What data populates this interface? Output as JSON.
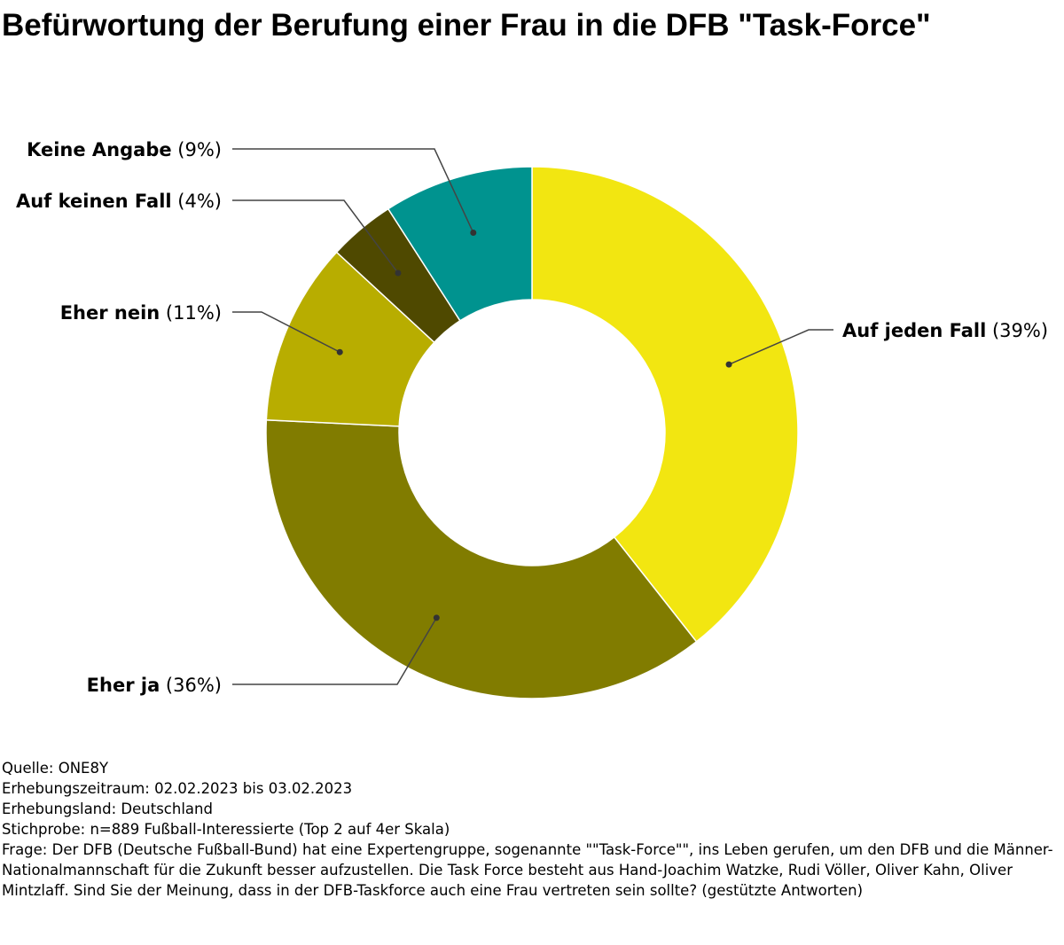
{
  "title": "Befürwortung der Berufung einer Frau in die DFB \"Task-Force\"",
  "chart_data": {
    "type": "pie",
    "variant": "donut",
    "title": "Befürwortung der Berufung einer Frau in die DFB \"Task-Force\"",
    "slices": [
      {
        "name": "Auf jeden Fall",
        "pct_label": "(39%)",
        "value": 39,
        "color": "#f2e611"
      },
      {
        "name": "Eher ja",
        "pct_label": "(36%)",
        "value": 36,
        "color": "#817c00"
      },
      {
        "name": "Eher nein",
        "pct_label": "(11%)",
        "value": 11,
        "color": "#b8ad00"
      },
      {
        "name": "Auf keinen Fall",
        "pct_label": "(4%)",
        "value": 4,
        "color": "#4f4900"
      },
      {
        "name": "Keine Angabe",
        "pct_label": "(9%)",
        "value": 9,
        "color": "#00938f"
      }
    ]
  },
  "footer": {
    "source": "Quelle: ONE8Y",
    "period": "Erhebungszeitraum: 02.02.2023 bis 03.02.2023",
    "country": "Erhebungsland: Deutschland",
    "sample": "Stichprobe: n=889 Fußball-Interessierte (Top 2 auf 4er Skala)",
    "question": "Frage: Der DFB (Deutsche Fußball-Bund) hat eine Expertengruppe, sogenannte \"\"Task-Force\"\", ins Leben gerufen, um den DFB und die Männer-Nationalmannschaft für die Zukunft besser aufzustellen. Die Task Force besteht aus Hand-Joachim Watzke, Rudi Völler, Oliver Kahn, Oliver Mintzlaff. Sind Sie der Meinung, dass in der DFB-Taskforce auch eine Frau vertreten sein sollte? (gestützte Antworten)"
  }
}
